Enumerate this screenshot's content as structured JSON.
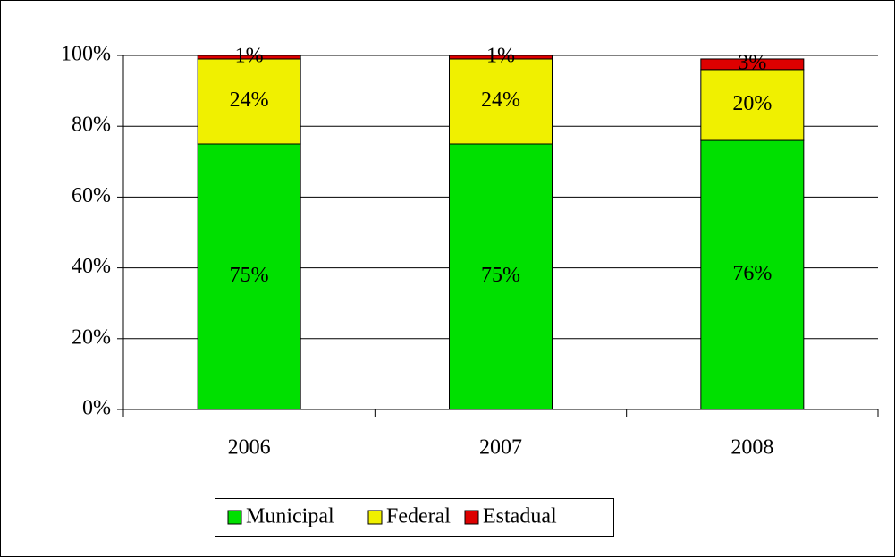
{
  "chart_data": {
    "type": "stacked_bar",
    "categories": [
      "2006",
      "2007",
      "2008"
    ],
    "series": [
      {
        "name": "Municipal",
        "color": "#00e000",
        "values": [
          75,
          75,
          76
        ],
        "value_labels": [
          "75%",
          "75%",
          "76%"
        ]
      },
      {
        "name": "Federal",
        "color": "#f0f000",
        "values": [
          24,
          24,
          20
        ],
        "value_labels": [
          "24%",
          "24%",
          "20%"
        ]
      },
      {
        "name": "Estadual",
        "color": "#dd0000",
        "values": [
          1,
          1,
          3
        ],
        "value_labels": [
          "1%",
          "1%",
          "3%"
        ]
      }
    ],
    "ylim": [
      0,
      100
    ],
    "yticks": [
      {
        "value": 0,
        "label": "0%"
      },
      {
        "value": 20,
        "label": "20%"
      },
      {
        "value": 40,
        "label": "40%"
      },
      {
        "value": 60,
        "label": "60%"
      },
      {
        "value": 80,
        "label": "80%"
      },
      {
        "value": 100,
        "label": "100%"
      }
    ],
    "grid": true,
    "legend": "bottom"
  }
}
